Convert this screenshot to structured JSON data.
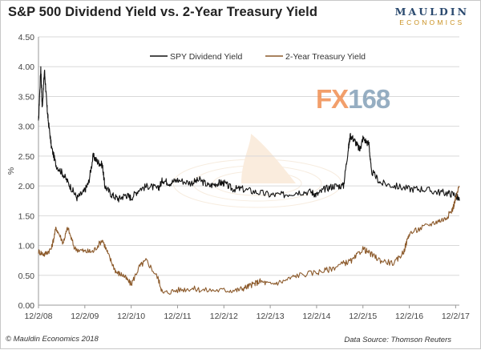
{
  "header": {
    "title": "S&P 500 Dividend Yield vs. 2-Year Treasury Yield"
  },
  "brand": {
    "line1": "MAULDIN",
    "line2": "ECONOMICS"
  },
  "watermark": {
    "part1": "FX",
    "part2": "168"
  },
  "footer": {
    "left": "© Mauldin Economics 2018",
    "right": "Data Source: Thomson Reuters"
  },
  "colors": {
    "spy": "#111111",
    "treasury": "#8c5a2b",
    "grid": "#d9d9d9"
  },
  "chart_data": {
    "type": "line",
    "title": "S&P 500 Dividend Yield vs. 2-Year Treasury Yield",
    "xlabel": "",
    "ylabel": "%",
    "ylim": [
      0,
      4.5
    ],
    "yticks": [
      "0.00",
      "0.50",
      "1.00",
      "1.50",
      "2.00",
      "2.50",
      "3.00",
      "3.50",
      "4.00",
      "4.50"
    ],
    "xlim": [
      2008.92,
      2018.0
    ],
    "xticks": [
      "12/2/08",
      "12/2/09",
      "12/2/10",
      "12/2/11",
      "12/2/12",
      "12/2/13",
      "12/2/14",
      "12/2/15",
      "12/2/16",
      "12/2/17"
    ],
    "grid": true,
    "legend_position": "top-center",
    "series": [
      {
        "name": "SPY Dividend Yield",
        "x": [
          2008.92,
          2008.97,
          2009.0,
          2009.05,
          2009.1,
          2009.13,
          2009.2,
          2009.3,
          2009.45,
          2009.6,
          2009.75,
          2009.9,
          2010.0,
          2010.1,
          2010.2,
          2010.3,
          2010.35,
          2010.5,
          2010.65,
          2010.8,
          2010.92,
          2011.1,
          2011.3,
          2011.5,
          2011.6,
          2011.75,
          2011.92,
          2012.2,
          2012.4,
          2012.6,
          2012.8,
          2012.92,
          2013.1,
          2013.3,
          2013.6,
          2013.92,
          2014.2,
          2014.5,
          2014.8,
          2014.92,
          2015.1,
          2015.3,
          2015.5,
          2015.6,
          2015.65,
          2015.75,
          2015.85,
          2015.92,
          2016.05,
          2016.1,
          2016.3,
          2016.6,
          2016.92,
          2017.2,
          2017.5,
          2017.75,
          2017.92,
          2018.0
        ],
        "values": [
          3.05,
          4.0,
          3.3,
          3.95,
          3.35,
          3.1,
          2.65,
          2.35,
          2.2,
          2.0,
          1.8,
          1.9,
          2.05,
          2.5,
          2.4,
          2.35,
          2.0,
          1.85,
          1.78,
          1.85,
          1.8,
          1.95,
          2.0,
          1.95,
          2.1,
          2.05,
          2.1,
          2.05,
          2.1,
          2.0,
          2.05,
          2.05,
          1.95,
          1.95,
          1.9,
          1.85,
          1.85,
          1.9,
          1.9,
          1.85,
          1.95,
          2.0,
          2.0,
          2.6,
          2.85,
          2.75,
          2.6,
          2.8,
          2.7,
          2.25,
          2.05,
          2.0,
          1.95,
          1.95,
          1.9,
          1.88,
          1.85,
          1.75
        ]
      },
      {
        "name": "2-Year Treasury Yield",
        "x": [
          2008.92,
          2009.05,
          2009.2,
          2009.3,
          2009.45,
          2009.55,
          2009.7,
          2009.92,
          2010.1,
          2010.3,
          2010.45,
          2010.6,
          2010.75,
          2010.92,
          2011.1,
          2011.25,
          2011.5,
          2011.6,
          2011.9,
          2012.2,
          2012.5,
          2012.92,
          2013.2,
          2013.4,
          2013.55,
          2013.7,
          2013.92,
          2014.2,
          2014.5,
          2014.92,
          2015.2,
          2015.5,
          2015.7,
          2015.92,
          2016.1,
          2016.3,
          2016.6,
          2016.8,
          2016.92,
          2017.2,
          2017.5,
          2017.7,
          2017.85,
          2017.92,
          2018.0
        ],
        "values": [
          0.9,
          0.85,
          0.95,
          1.3,
          1.05,
          1.3,
          0.95,
          0.9,
          0.9,
          1.1,
          0.8,
          0.55,
          0.5,
          0.35,
          0.65,
          0.75,
          0.45,
          0.2,
          0.25,
          0.28,
          0.25,
          0.25,
          0.25,
          0.3,
          0.35,
          0.4,
          0.35,
          0.4,
          0.5,
          0.55,
          0.6,
          0.7,
          0.75,
          0.95,
          0.85,
          0.75,
          0.7,
          0.9,
          1.2,
          1.3,
          1.4,
          1.45,
          1.6,
          1.78,
          2.0
        ]
      }
    ]
  }
}
